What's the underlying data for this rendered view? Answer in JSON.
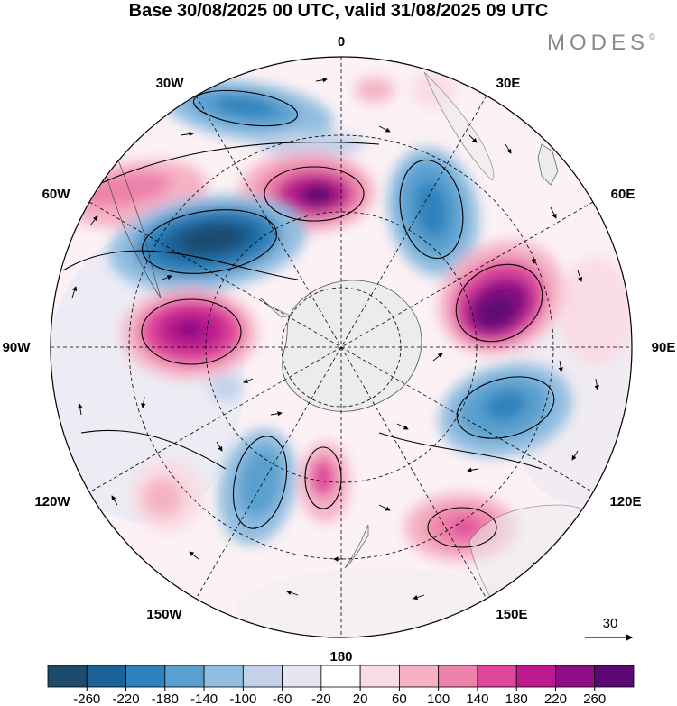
{
  "title": "Base 30/08/2025 00 UTC, valid 31/08/2025 09 UTC",
  "brand": "MODES",
  "brand_mark": "©",
  "longitude_labels": {
    "lon_0": "0",
    "lon_30e": "30E",
    "lon_60e": "60E",
    "lon_90e": "90E",
    "lon_120e": "120E",
    "lon_150e": "150E",
    "lon_180": "180",
    "lon_150w": "150W",
    "lon_120w": "120W",
    "lon_90w": "90W",
    "lon_60w": "60W",
    "lon_30w": "30W"
  },
  "reference_vector_label": "30",
  "colorbar": {
    "tick_labels": [
      "-260",
      "-220",
      "-180",
      "-140",
      "-100",
      "-60",
      "-20",
      "20",
      "60",
      "100",
      "140",
      "180",
      "220",
      "260"
    ],
    "colors": [
      "#1e4a6c",
      "#1b6297",
      "#2f82bd",
      "#5aa0cf",
      "#90bde0",
      "#c4d1ea",
      "#e6e6f2",
      "#ffffff",
      "#f9dbe3",
      "#f5b2c5",
      "#ee82aa",
      "#e0469b",
      "#bc1a8d",
      "#8e0e85",
      "#5a0a72"
    ]
  },
  "colors": {
    "land": "#ececec",
    "grid": "#000000"
  }
}
